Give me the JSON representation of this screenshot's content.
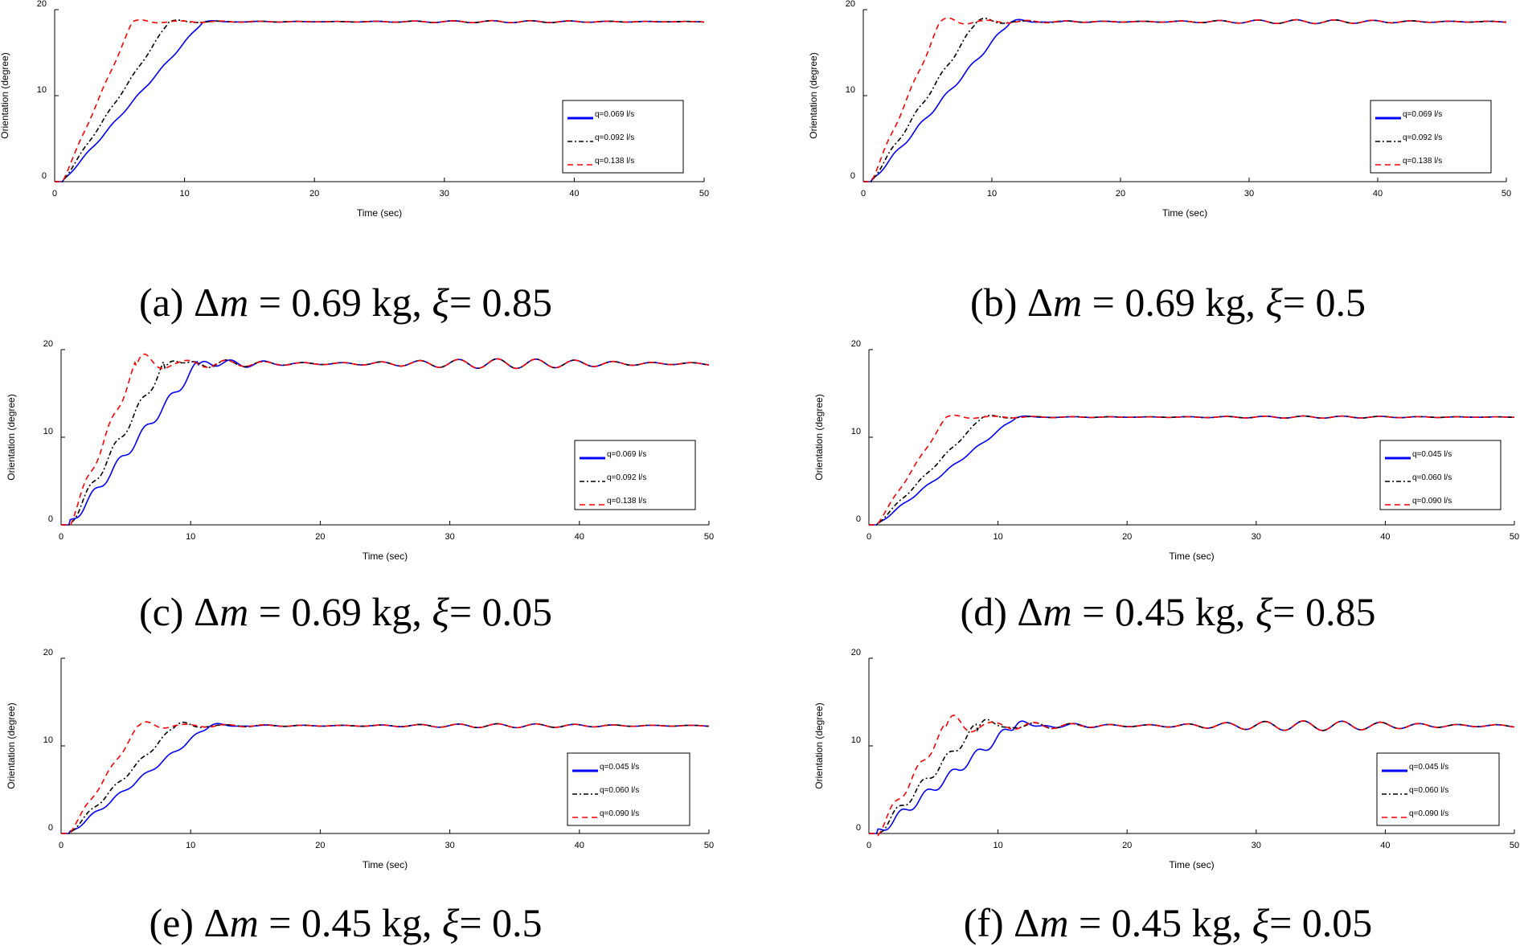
{
  "chart_data": [
    {
      "id": "a",
      "type": "line",
      "caption": {
        "prefix": "(a) Δ",
        "var": "m",
        "mid": " = 0.69 kg, ",
        "sym": "ξ",
        "suffix": "= 0.85"
      },
      "xlabel": "Time (sec)",
      "ylabel": "Orientation (degree)",
      "xlim": [
        0,
        50
      ],
      "ylim": [
        0,
        20
      ],
      "xticks": [
        0,
        10,
        20,
        30,
        40,
        50
      ],
      "yticks": [
        0,
        10,
        20
      ],
      "steady": 18.6,
      "damping": 0.85,
      "legend_position": "lower-right",
      "series": [
        {
          "name": "q=0.069 l/s",
          "color": "#0000ff",
          "dash": "",
          "rise_time": 11.4,
          "start": 0.6
        },
        {
          "name": "q=0.092 l/s",
          "color": "#000000",
          "dash": "6,3,2,3",
          "rise_time": 8.8,
          "start": 0.6
        },
        {
          "name": "q=0.138 l/s",
          "color": "#ff0000",
          "dash": "7,5",
          "rise_time": 6.0,
          "start": 0.6
        }
      ]
    },
    {
      "id": "b",
      "type": "line",
      "caption": {
        "prefix": "(b) Δ",
        "var": "m",
        "mid": " = 0.69 kg, ",
        "sym": "ξ",
        "suffix": "= 0.5"
      },
      "xlabel": "Time (sec)",
      "ylabel": "Orientation (degree)",
      "xlim": [
        0,
        50
      ],
      "ylim": [
        0,
        20
      ],
      "xticks": [
        0,
        10,
        20,
        30,
        40,
        50
      ],
      "yticks": [
        0,
        10,
        20
      ],
      "steady": 18.6,
      "damping": 0.5,
      "legend_position": "lower-right",
      "series": [
        {
          "name": "q=0.069 l/s",
          "color": "#0000ff",
          "dash": "",
          "rise_time": 11.4,
          "start": 0.6
        },
        {
          "name": "q=0.092 l/s",
          "color": "#000000",
          "dash": "6,3,2,3",
          "rise_time": 8.8,
          "start": 0.6
        },
        {
          "name": "q=0.138 l/s",
          "color": "#ff0000",
          "dash": "7,5",
          "rise_time": 6.0,
          "start": 0.6
        }
      ]
    },
    {
      "id": "c",
      "type": "line",
      "caption": {
        "prefix": "(c) Δ",
        "var": "m",
        "mid": " = 0.69 kg, ",
        "sym": "ξ",
        "suffix": "= 0.05"
      },
      "xlabel": "Time (sec)",
      "ylabel": "Orientation (degree)",
      "xlim": [
        0,
        50
      ],
      "ylim": [
        0,
        20
      ],
      "xticks": [
        0,
        10,
        20,
        30,
        40,
        50
      ],
      "yticks": [
        0,
        10,
        20
      ],
      "steady": 18.4,
      "damping": 0.05,
      "legend_position": "lower-right",
      "series": [
        {
          "name": "q=0.069 l/s",
          "color": "#0000ff",
          "dash": "",
          "rise_time": 10.6,
          "start": 0.6
        },
        {
          "name": "q=0.092 l/s",
          "color": "#000000",
          "dash": "6,3,2,3",
          "rise_time": 8.0,
          "start": 0.6
        },
        {
          "name": "q=0.138 l/s",
          "color": "#ff0000",
          "dash": "7,5",
          "rise_time": 5.8,
          "start": 0.6
        }
      ]
    },
    {
      "id": "d",
      "type": "line",
      "caption": {
        "prefix": "(d) Δ",
        "var": "m",
        "mid": " = 0.45 kg, ",
        "sym": "ξ",
        "suffix": "= 0.85"
      },
      "xlabel": "Time (sec)",
      "ylabel": "Orientation (degree)",
      "xlim": [
        0,
        50
      ],
      "ylim": [
        0,
        20
      ],
      "xticks": [
        0,
        10,
        20,
        30,
        40,
        50
      ],
      "yticks": [
        0,
        10,
        20
      ],
      "steady": 12.3,
      "damping": 0.85,
      "legend_position": "lower-right",
      "series": [
        {
          "name": "q=0.045 l/s",
          "color": "#0000ff",
          "dash": "",
          "rise_time": 11.4,
          "start": 0.6
        },
        {
          "name": "q=0.060 l/s",
          "color": "#000000",
          "dash": "6,3,2,3",
          "rise_time": 8.8,
          "start": 0.6
        },
        {
          "name": "q=0.090 l/s",
          "color": "#ff0000",
          "dash": "7,5",
          "rise_time": 6.0,
          "start": 0.6
        }
      ]
    },
    {
      "id": "e",
      "type": "line",
      "caption": {
        "prefix": "(e) Δ",
        "var": "m",
        "mid": " = 0.45 kg, ",
        "sym": "ξ",
        "suffix": "= 0.5"
      },
      "xlabel": "Time (sec)",
      "ylabel": "Orientation (degree)",
      "xlim": [
        0,
        50
      ],
      "ylim": [
        0,
        20
      ],
      "xticks": [
        0,
        10,
        20,
        30,
        40,
        50
      ],
      "yticks": [
        0,
        10,
        20
      ],
      "steady": 12.3,
      "damping": 0.5,
      "legend_position": "lower-right",
      "series": [
        {
          "name": "q=0.045 l/s",
          "color": "#0000ff",
          "dash": "",
          "rise_time": 11.4,
          "start": 0.6
        },
        {
          "name": "q=0.060 l/s",
          "color": "#000000",
          "dash": "6,3,2,3",
          "rise_time": 8.8,
          "start": 0.6
        },
        {
          "name": "q=0.090 l/s",
          "color": "#ff0000",
          "dash": "7,5",
          "rise_time": 6.0,
          "start": 0.6
        }
      ]
    },
    {
      "id": "f",
      "type": "line",
      "caption": {
        "prefix": "(f) Δ",
        "var": "m",
        "mid": " = 0.45 kg, ",
        "sym": "ξ",
        "suffix": "= 0.05"
      },
      "xlabel": "Time (sec)",
      "ylabel": "Orientation (degree)",
      "xlim": [
        0,
        50
      ],
      "ylim": [
        0,
        20
      ],
      "xticks": [
        0,
        10,
        20,
        30,
        40,
        50
      ],
      "yticks": [
        0,
        10,
        20
      ],
      "steady": 12.3,
      "damping": 0.05,
      "legend_position": "lower-right",
      "series": [
        {
          "name": "q=0.045 l/s",
          "color": "#0000ff",
          "dash": "",
          "rise_time": 11.2,
          "start": 0.6
        },
        {
          "name": "q=0.060 l/s",
          "color": "#000000",
          "dash": "6,3,2,3",
          "rise_time": 8.4,
          "start": 0.6
        },
        {
          "name": "q=0.090 l/s",
          "color": "#ff0000",
          "dash": "7,5",
          "rise_time": 6.0,
          "start": 0.6
        }
      ]
    }
  ]
}
